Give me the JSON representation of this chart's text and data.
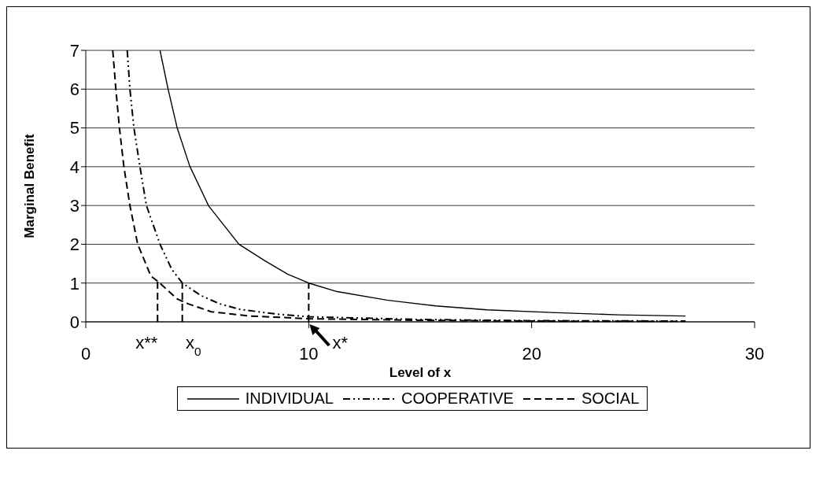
{
  "chart_data": {
    "type": "line",
    "xlabel": "Level of x",
    "ylabel": "Marginal Benefit",
    "xlim": [
      0,
      30
    ],
    "xticks": [
      0,
      10,
      20,
      30
    ],
    "ylim": [
      0,
      7
    ],
    "yticks": [
      0,
      1,
      2,
      3,
      4,
      5,
      6,
      7
    ],
    "grid": "y",
    "legend": "bottom",
    "marker": "none",
    "series": [
      {
        "name": "INDIVIDUAL",
        "color": "#000000",
        "line_style": "solid",
        "x": [
          3.33,
          3.69,
          4.1,
          4.66,
          5.51,
          6.87,
          7.99,
          9.05,
          10,
          11.27,
          13.5,
          15.7,
          18,
          20.9,
          23.9,
          26.9
        ],
        "values": [
          7,
          6.01,
          5,
          4.02,
          2.99,
          2,
          1.59,
          1.23,
          1,
          0.78,
          0.56,
          0.41,
          0.31,
          0.24,
          0.18,
          0.15
        ]
      },
      {
        "name": "COOPERATIVE",
        "color": "#000000",
        "line_style": "dashdot",
        "x": [
          1.86,
          1.98,
          2.16,
          2.43,
          2.72,
          3.33,
          3.86,
          4.33,
          5.16,
          5.98,
          6.93,
          8.58,
          10,
          15,
          20,
          26.9
        ],
        "values": [
          7,
          6,
          5,
          4,
          3,
          2,
          1.35,
          1,
          0.68,
          0.47,
          0.32,
          0.2,
          0.13,
          0.06,
          0.03,
          0.02
        ]
      },
      {
        "name": "SOCIAL",
        "color": "#000000",
        "line_style": "dashed",
        "x": [
          1.21,
          1.35,
          1.51,
          1.71,
          1.98,
          2.33,
          2.92,
          3.22,
          4.1,
          4.57,
          5.63,
          7.39,
          10,
          15,
          20,
          26.9
        ],
        "values": [
          7,
          6,
          5,
          4,
          3,
          2,
          1.18,
          1.05,
          0.59,
          0.47,
          0.26,
          0.15,
          0.08,
          0.04,
          0.02,
          0.01
        ]
      },
      {
        "color": "#000000",
        "line_style": "dashed",
        "x": [
          3.22,
          3.22
        ],
        "values": [
          0,
          1.05
        ]
      },
      {
        "color": "#000000",
        "line_style": "dashed",
        "x": [
          4.33,
          4.33
        ],
        "values": [
          0,
          1
        ]
      },
      {
        "color": "#000000",
        "line_style": "dashed",
        "x": [
          10,
          10
        ],
        "values": [
          0,
          1
        ]
      }
    ],
    "annotations": [
      {
        "text": "x**",
        "x": 3.22,
        "y": 0
      },
      {
        "text": "x$_{0}$",
        "x": 4.33,
        "y": 0
      },
      {
        "text": "x*",
        "x": 10,
        "y": 0
      }
    ]
  }
}
